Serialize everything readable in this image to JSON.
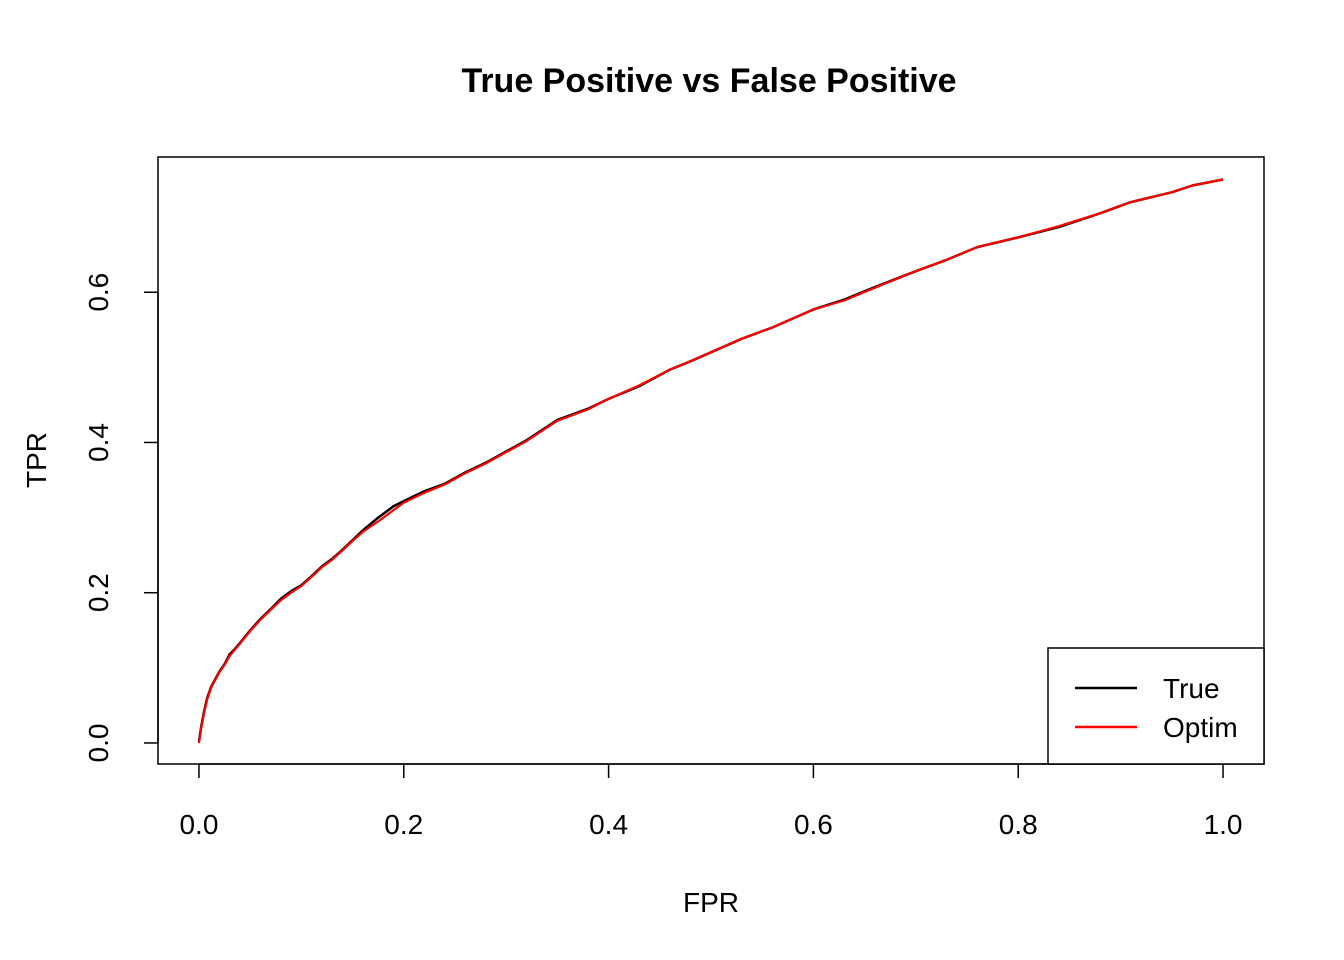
{
  "chart_data": {
    "type": "line",
    "title": "True Positive vs False Positive",
    "xlabel": "FPR",
    "ylabel": "TPR",
    "xlim": [
      -0.04,
      1.04
    ],
    "ylim": [
      -0.028,
      0.78
    ],
    "x_ticks": [
      0.0,
      0.2,
      0.4,
      0.6,
      0.8,
      1.0
    ],
    "x_tick_labels": [
      "0.0",
      "0.2",
      "0.4",
      "0.6",
      "0.8",
      "1.0"
    ],
    "y_ticks": [
      0.0,
      0.2,
      0.4,
      0.6
    ],
    "y_tick_labels": [
      "0.0",
      "0.2",
      "0.4",
      "0.6"
    ],
    "grid": false,
    "legend_position": "bottom-right",
    "series": [
      {
        "name": "True",
        "color": "#000000",
        "x": [
          0.0,
          0.002,
          0.005,
          0.008,
          0.012,
          0.016,
          0.02,
          0.025,
          0.03,
          0.035,
          0.04,
          0.05,
          0.06,
          0.07,
          0.08,
          0.09,
          0.1,
          0.11,
          0.12,
          0.13,
          0.14,
          0.15,
          0.16,
          0.175,
          0.19,
          0.2,
          0.22,
          0.24,
          0.26,
          0.28,
          0.3,
          0.32,
          0.35,
          0.38,
          0.4,
          0.43,
          0.46,
          0.48,
          0.5,
          0.53,
          0.56,
          0.6,
          0.63,
          0.66,
          0.7,
          0.73,
          0.76,
          0.8,
          0.84,
          0.88,
          0.91,
          0.95,
          0.97,
          1.0
        ],
        "y": [
          0.002,
          0.02,
          0.042,
          0.06,
          0.075,
          0.085,
          0.095,
          0.105,
          0.118,
          0.125,
          0.133,
          0.15,
          0.165,
          0.178,
          0.192,
          0.202,
          0.21,
          0.222,
          0.235,
          0.245,
          0.257,
          0.27,
          0.283,
          0.3,
          0.315,
          0.322,
          0.335,
          0.345,
          0.36,
          0.373,
          0.388,
          0.403,
          0.43,
          0.445,
          0.458,
          0.475,
          0.497,
          0.508,
          0.52,
          0.538,
          0.553,
          0.577,
          0.59,
          0.607,
          0.628,
          0.643,
          0.66,
          0.673,
          0.687,
          0.705,
          0.72,
          0.733,
          0.742,
          0.75
        ]
      },
      {
        "name": "Optim",
        "color": "#ff0000",
        "x": [
          0.0,
          0.002,
          0.005,
          0.008,
          0.012,
          0.016,
          0.02,
          0.025,
          0.03,
          0.035,
          0.04,
          0.05,
          0.06,
          0.07,
          0.08,
          0.09,
          0.1,
          0.11,
          0.12,
          0.13,
          0.14,
          0.15,
          0.16,
          0.175,
          0.19,
          0.2,
          0.22,
          0.24,
          0.26,
          0.28,
          0.3,
          0.32,
          0.35,
          0.38,
          0.4,
          0.43,
          0.46,
          0.48,
          0.5,
          0.53,
          0.56,
          0.6,
          0.63,
          0.66,
          0.7,
          0.73,
          0.76,
          0.8,
          0.84,
          0.88,
          0.91,
          0.95,
          0.97,
          1.0
        ],
        "y": [
          0.0,
          0.018,
          0.04,
          0.058,
          0.074,
          0.084,
          0.094,
          0.104,
          0.116,
          0.124,
          0.132,
          0.149,
          0.164,
          0.177,
          0.19,
          0.2,
          0.209,
          0.221,
          0.234,
          0.244,
          0.256,
          0.269,
          0.281,
          0.295,
          0.31,
          0.32,
          0.333,
          0.344,
          0.359,
          0.372,
          0.387,
          0.402,
          0.429,
          0.444,
          0.458,
          0.476,
          0.497,
          0.508,
          0.52,
          0.538,
          0.553,
          0.577,
          0.589,
          0.606,
          0.628,
          0.643,
          0.66,
          0.673,
          0.688,
          0.705,
          0.72,
          0.733,
          0.742,
          0.75
        ]
      }
    ]
  }
}
